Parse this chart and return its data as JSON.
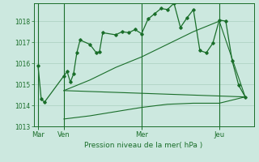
{
  "bg_color": "#cce8df",
  "grid_color": "#aacfbf",
  "line_color": "#1a6e2a",
  "marker_color": "#1a6e2a",
  "xlabel": "Pression niveau de la mer( hPa )",
  "ylim": [
    1013.0,
    1018.85
  ],
  "yticks": [
    1013,
    1014,
    1015,
    1016,
    1017,
    1018
  ],
  "day_labels": [
    "Mar",
    "Ven",
    "Mer",
    "Jeu"
  ],
  "day_positions": [
    0,
    48,
    192,
    336
  ],
  "xlim": [
    -8,
    400
  ],
  "series1_x": [
    0,
    6,
    12,
    48,
    54,
    60,
    66,
    72,
    78,
    96,
    108,
    114,
    120,
    144,
    156,
    168,
    180,
    192,
    204,
    216,
    228,
    240,
    252,
    264,
    276,
    288,
    300,
    312,
    324,
    336,
    348,
    360,
    372,
    384
  ],
  "series1_y": [
    1015.9,
    1014.3,
    1014.15,
    1015.4,
    1015.6,
    1015.1,
    1015.5,
    1016.5,
    1017.1,
    1016.9,
    1016.5,
    1016.55,
    1017.45,
    1017.35,
    1017.5,
    1017.45,
    1017.6,
    1017.4,
    1018.1,
    1018.35,
    1018.6,
    1018.55,
    1018.85,
    1017.7,
    1018.15,
    1018.55,
    1016.6,
    1016.5,
    1016.95,
    1018.05,
    1018.0,
    1016.1,
    1014.95,
    1014.4
  ],
  "series2_x": [
    48,
    384
  ],
  "series2_y": [
    1014.7,
    1014.4
  ],
  "series3_x": [
    48,
    96,
    144,
    192,
    240,
    288,
    336,
    384
  ],
  "series3_y": [
    1014.7,
    1015.2,
    1015.8,
    1016.3,
    1016.9,
    1017.5,
    1018.0,
    1014.4
  ],
  "series4_x": [
    48,
    96,
    144,
    192,
    240,
    288,
    336,
    384
  ],
  "series4_y": [
    1013.35,
    1013.5,
    1013.7,
    1013.9,
    1014.05,
    1014.1,
    1014.1,
    1014.4
  ],
  "vline_positions": [
    0,
    48,
    192,
    336
  ]
}
